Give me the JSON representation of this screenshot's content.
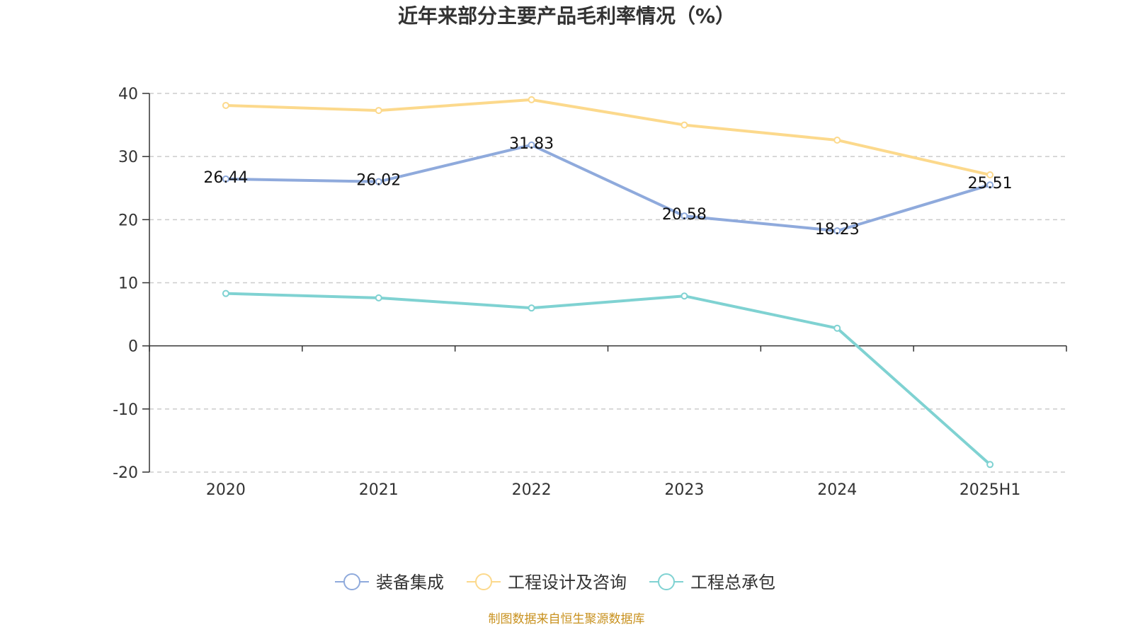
{
  "chart_data": {
    "type": "line",
    "title": "近年来部分主要产品毛利率情况（%）",
    "categories": [
      "2020",
      "2021",
      "2022",
      "2023",
      "2024",
      "2025H1"
    ],
    "ylim": [
      -20,
      40
    ],
    "yticks": [
      "-20",
      "-10",
      "0",
      "10",
      "20",
      "30",
      "40"
    ],
    "grid": true,
    "legend_position": "bottom-center",
    "series": [
      {
        "name": "装备集成",
        "color": "#8faadc",
        "values": [
          26.44,
          26.02,
          31.83,
          20.58,
          18.23,
          25.51
        ],
        "labels": [
          "26.44",
          "26.02",
          "31.83",
          "20.58",
          "18.23",
          "25.51"
        ]
      },
      {
        "name": "工程设计及咨询",
        "color": "#fcd98c",
        "values": [
          38.1,
          37.3,
          39.0,
          35.0,
          32.6,
          27.1
        ]
      },
      {
        "name": "工程总承包",
        "color": "#7fd2d2",
        "values": [
          8.3,
          7.6,
          6.0,
          7.9,
          2.8,
          -18.8
        ]
      }
    ],
    "source": "制图数据来自恒生聚源数据库"
  }
}
